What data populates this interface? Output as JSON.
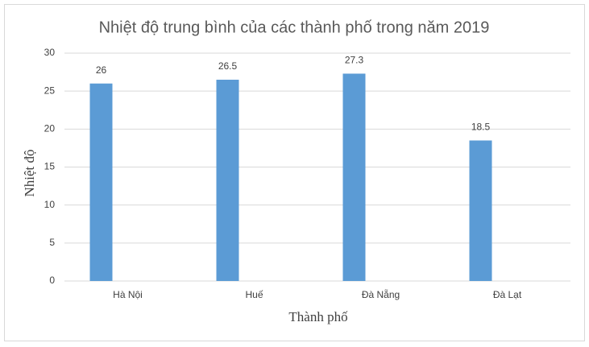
{
  "chart_data": {
    "type": "bar",
    "title": "Nhiệt độ trung bình của các thành phố trong năm 2019",
    "x_label": "Thành phố",
    "y_label": "Nhiệt độ",
    "categories": [
      "Hà Nội",
      "Huế",
      "Đà Nẵng",
      "Đà Lạt"
    ],
    "values": [
      26,
      26.5,
      27.3,
      18.5
    ],
    "color": "#5b9bd5",
    "ylim": [
      0,
      30
    ],
    "yticks": [
      0,
      5,
      10,
      15,
      20,
      25,
      30
    ],
    "grid": true
  }
}
